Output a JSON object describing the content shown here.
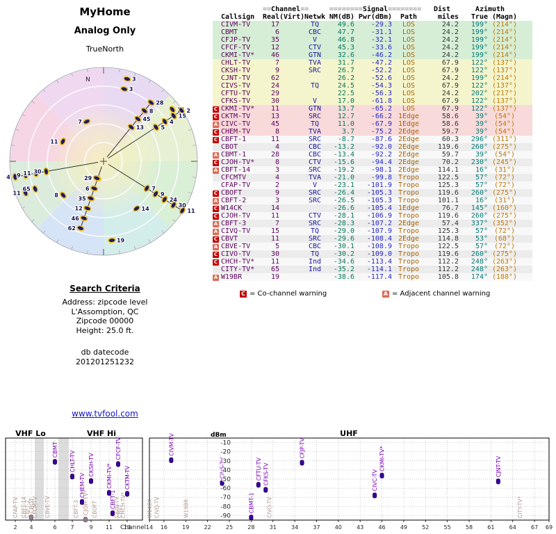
{
  "left": {
    "title1": "MyHome",
    "title2": "Analog Only",
    "north_label": "TrueNorth",
    "compass_n": "N",
    "search": {
      "heading": "Search Criteria",
      "lines": [
        "Address: zipcode level",
        "L'Assomption, QC",
        "Zipcode 00000",
        "Height: 25.0 ft."
      ],
      "datecode_label": "db datecode",
      "datecode": "201201251232"
    },
    "link": "www.tvfool.com"
  },
  "table": {
    "header": {
      "eq2": "==",
      "eq8": "========",
      "channel_group": "Channel",
      "signal_group": "Signal",
      "dist_group": "Dist",
      "azimuth_group": "Azimuth",
      "cols": [
        "Callsign",
        "Real",
        "(Virt)",
        "Netwk",
        "NM(dB)",
        "Pwr(dBm)",
        "Path",
        "miles",
        "True",
        "(Magn)"
      ]
    },
    "legend": {
      "c_symbol": "C",
      "c_text": "= Co-channel warning",
      "a_symbol": "A",
      "a_text": "= Adjacent channel warning"
    },
    "rows": [
      {
        "badge": "",
        "callsign": "CIVM-TV",
        "real": "17",
        "virt": "",
        "netwk": "TQ",
        "nm": "49.6",
        "pwr": "-29.3",
        "path": "LOS",
        "miles": "24.2",
        "true": "199°",
        "magn": "(214°)",
        "band": "green"
      },
      {
        "badge": "",
        "callsign": "CBMT",
        "real": "6",
        "virt": "",
        "netwk": "CBC",
        "nm": "47.7",
        "pwr": "-31.1",
        "path": "LOS",
        "miles": "24.2",
        "true": "199°",
        "magn": "(214°)",
        "band": "green"
      },
      {
        "badge": "",
        "callsign": "CFJP-TV",
        "real": "35",
        "virt": "",
        "netwk": "V",
        "nm": "46.8",
        "pwr": "-32.1",
        "path": "LOS",
        "miles": "24.2",
        "true": "199°",
        "magn": "(214°)",
        "band": "green"
      },
      {
        "badge": "",
        "callsign": "CFCF-TV",
        "real": "12",
        "virt": "",
        "netwk": "CTV",
        "nm": "45.3",
        "pwr": "-33.6",
        "path": "LOS",
        "miles": "24.2",
        "true": "199°",
        "magn": "(214°)",
        "band": "green"
      },
      {
        "badge": "",
        "callsign": "CKMI-TV*",
        "real": "46",
        "virt": "",
        "netwk": "GTN",
        "nm": "32.6",
        "pwr": "-46.2",
        "path": "LOS",
        "miles": "24.2",
        "true": "199°",
        "magn": "(214°)",
        "band": "green"
      },
      {
        "badge": "",
        "callsign": "CHLT-TV",
        "real": "7",
        "virt": "",
        "netwk": "TVA",
        "nm": "31.7",
        "pwr": "-47.2",
        "path": "LOS",
        "miles": "67.9",
        "true": "122°",
        "magn": "(137°)",
        "band": "yellow"
      },
      {
        "badge": "",
        "callsign": "CKSH-TV",
        "real": "9",
        "virt": "",
        "netwk": "SRC",
        "nm": "26.7",
        "pwr": "-52.2",
        "path": "LOS",
        "miles": "67.9",
        "true": "122°",
        "magn": "(137°)",
        "band": "yellow"
      },
      {
        "badge": "",
        "callsign": "CJNT-TV",
        "real": "62",
        "virt": "",
        "netwk": "",
        "nm": "26.2",
        "pwr": "-52.6",
        "path": "LOS",
        "miles": "24.2",
        "true": "199°",
        "magn": "(214°)",
        "band": "yellow"
      },
      {
        "badge": "",
        "callsign": "CIVS-TV",
        "real": "24",
        "virt": "",
        "netwk": "TQ",
        "nm": "24.5",
        "pwr": "-54.3",
        "path": "LOS",
        "miles": "67.9",
        "true": "122°",
        "magn": "(137°)",
        "band": "yellow"
      },
      {
        "badge": "",
        "callsign": "CFTU-TV",
        "real": "29",
        "virt": "",
        "netwk": "",
        "nm": "22.5",
        "pwr": "-56.3",
        "path": "LOS",
        "miles": "24.2",
        "true": "202°",
        "magn": "(217°)",
        "band": "yellow"
      },
      {
        "badge": "",
        "callsign": "CFKS-TV",
        "real": "30",
        "virt": "",
        "netwk": "V",
        "nm": "17.0",
        "pwr": "-61.8",
        "path": "LOS",
        "miles": "67.9",
        "true": "122°",
        "magn": "(137°)",
        "band": "yellow"
      },
      {
        "badge": "C",
        "callsign": "CKMI-TV*",
        "real": "11",
        "virt": "",
        "netwk": "GTN",
        "nm": "13.7",
        "pwr": "-65.2",
        "path": "LOS",
        "miles": "67.9",
        "true": "122°",
        "magn": "(137°)",
        "band": "pink"
      },
      {
        "badge": "C",
        "callsign": "CKTM-TV",
        "real": "13",
        "virt": "",
        "netwk": "SRC",
        "nm": "12.7",
        "pwr": "-66.2",
        "path": "1Edge",
        "miles": "58.6",
        "true": "39°",
        "magn": "(54°)",
        "band": "pink"
      },
      {
        "badge": "A",
        "callsign": "CIVC-TV",
        "real": "45",
        "virt": "",
        "netwk": "TQ",
        "nm": "11.0",
        "pwr": "-67.9",
        "path": "1Edge",
        "miles": "58.6",
        "true": "39°",
        "magn": "(54°)",
        "band": "pink"
      },
      {
        "badge": "C",
        "callsign": "CHEM-TV",
        "real": "8",
        "virt": "",
        "netwk": "TVA",
        "nm": "3.7",
        "pwr": "-75.2",
        "path": "2Edge",
        "miles": "59.7",
        "true": "39°",
        "magn": "(54°)",
        "band": "pink"
      },
      {
        "badge": "C",
        "callsign": "CBFT-1",
        "real": "11",
        "virt": "",
        "netwk": "SRC",
        "nm": "-8.7",
        "pwr": "-87.6",
        "path": "2Edge",
        "miles": "60.3",
        "true": "296°",
        "magn": "(311°)",
        "band": "gray"
      },
      {
        "badge": "",
        "callsign": "CBOT",
        "real": "4",
        "virt": "",
        "netwk": "CBC",
        "nm": "-13.2",
        "pwr": "-92.0",
        "path": "2Edge",
        "miles": "119.6",
        "true": "260°",
        "magn": "(275°)",
        "band": "gray"
      },
      {
        "badge": "A",
        "callsign": "CBMT-1",
        "real": "28",
        "virt": "",
        "netwk": "CBC",
        "nm": "-13.4",
        "pwr": "-92.2",
        "path": "2Edge",
        "miles": "59.7",
        "true": "39°",
        "magn": "(54°)",
        "band": "gray"
      },
      {
        "badge": "C",
        "callsign": "CJOH-TV*",
        "real": "8",
        "virt": "",
        "netwk": "CTV",
        "nm": "-15.6",
        "pwr": "-94.4",
        "path": "2Edge",
        "miles": "70.2",
        "true": "230°",
        "magn": "(245°)",
        "band": "gray"
      },
      {
        "badge": "A",
        "callsign": "CBFT-14",
        "real": "3",
        "virt": "",
        "netwk": "SRC",
        "nm": "-19.2",
        "pwr": "-98.1",
        "path": "2Edge",
        "miles": "114.1",
        "true": "16°",
        "magn": "(31°)",
        "band": "gray"
      },
      {
        "badge": "",
        "callsign": "CFCMTV",
        "real": "4",
        "virt": "",
        "netwk": "TVA",
        "nm": "-21.0",
        "pwr": "-99.8",
        "path": "Tropo",
        "miles": "122.5",
        "true": "57°",
        "magn": "(72°)",
        "band": "gray"
      },
      {
        "badge": "",
        "callsign": "CFAP-TV",
        "real": "2",
        "virt": "",
        "netwk": "V",
        "nm": "-23.1",
        "pwr": "-101.9",
        "path": "Tropo",
        "miles": "125.3",
        "true": "57°",
        "magn": "(72°)",
        "band": "gray"
      },
      {
        "badge": "C",
        "callsign": "CBOFT",
        "real": "9",
        "virt": "",
        "netwk": "SRC",
        "nm": "-26.4",
        "pwr": "-105.3",
        "path": "Tropo",
        "miles": "119.6",
        "true": "260°",
        "magn": "(275°)",
        "band": "gray"
      },
      {
        "badge": "A",
        "callsign": "CBFT-2",
        "real": "3",
        "virt": "",
        "netwk": "SRC",
        "nm": "-26.5",
        "pwr": "-105.3",
        "path": "Tropo",
        "miles": "101.1",
        "true": "16°",
        "magn": "(31°)",
        "band": "gray"
      },
      {
        "badge": "C",
        "callsign": "W14CK",
        "real": "14",
        "virt": "",
        "netwk": "",
        "nm": "-26.6",
        "pwr": "-105.4",
        "path": "1Edge",
        "miles": "76.7",
        "true": "145°",
        "magn": "(160°)",
        "band": "gray"
      },
      {
        "badge": "C",
        "callsign": "CJOH-TV",
        "real": "11",
        "virt": "",
        "netwk": "CTV",
        "nm": "-28.1",
        "pwr": "-106.9",
        "path": "Tropo",
        "miles": "119.6",
        "true": "260°",
        "magn": "(275°)",
        "band": "gray"
      },
      {
        "badge": "A",
        "callsign": "CBFT-3",
        "real": "7",
        "virt": "",
        "netwk": "SRC",
        "nm": "-28.3",
        "pwr": "-107.2",
        "path": "2Edge",
        "miles": "57.4",
        "true": "337°",
        "magn": "(352°)",
        "band": "gray"
      },
      {
        "badge": "A",
        "callsign": "CIVQ-TV",
        "real": "15",
        "virt": "",
        "netwk": "TQ",
        "nm": "-29.0",
        "pwr": "-107.9",
        "path": "Tropo",
        "miles": "125.3",
        "true": "57°",
        "magn": "(72°)",
        "band": "gray"
      },
      {
        "badge": "C",
        "callsign": "CBVT",
        "real": "11",
        "virt": "",
        "netwk": "SRC",
        "nm": "-29.6",
        "pwr": "-108.4",
        "path": "2Edge",
        "miles": "114.8",
        "true": "53°",
        "magn": "(68°)",
        "band": "gray"
      },
      {
        "badge": "A",
        "callsign": "CBVE-TV",
        "real": "5",
        "virt": "",
        "netwk": "CBC",
        "nm": "-30.1",
        "pwr": "-108.9",
        "path": "Tropo",
        "miles": "122.5",
        "true": "57°",
        "magn": "(72°)",
        "band": "gray"
      },
      {
        "badge": "C",
        "callsign": "CIVO-TV",
        "real": "30",
        "virt": "",
        "netwk": "TQ",
        "nm": "-30.2",
        "pwr": "-109.0",
        "path": "Tropo",
        "miles": "119.6",
        "true": "260°",
        "magn": "(275°)",
        "band": "gray"
      },
      {
        "badge": "C",
        "callsign": "CHCH-TV*",
        "real": "11",
        "virt": "",
        "netwk": "Ind",
        "nm": "-34.6",
        "pwr": "-113.4",
        "path": "Tropo",
        "miles": "112.2",
        "true": "248°",
        "magn": "(263°)",
        "band": "gray"
      },
      {
        "badge": "",
        "callsign": "CITY-TV*",
        "real": "65",
        "virt": "",
        "netwk": "Ind",
        "nm": "-35.2",
        "pwr": "-114.1",
        "path": "Tropo",
        "miles": "112.2",
        "true": "248°",
        "magn": "(263°)",
        "band": "gray"
      },
      {
        "badge": "A",
        "callsign": "W19BR",
        "real": "19",
        "virt": "",
        "netwk": "",
        "nm": "-38.6",
        "pwr": "-117.4",
        "path": "Tropo",
        "miles": "105.8",
        "true": "174°",
        "magn": "(188°)",
        "band": "gray"
      }
    ]
  },
  "radar": {
    "rings_miles": [
      25,
      50,
      75,
      100,
      125
    ],
    "sector_colors": [
      "#e8daf2",
      "#e7f0d3",
      "#d9efd6",
      "#d3edea",
      "#d5e4f6",
      "#dcecdc",
      "#f6d5e5",
      "#f0d9f0"
    ],
    "center_glow": "#f6efc0"
  },
  "chart_data": [
    {
      "type": "scatter",
      "panel": "VHF",
      "band_labels": [
        "VHF Lo",
        "VHF Hi"
      ],
      "ylabel": "dBm",
      "xlabel": "Channel",
      "ylim": [
        -95,
        -5
      ],
      "yticks": [
        -10,
        -20,
        -30,
        -40,
        -50,
        -60,
        -70,
        -80,
        -90
      ],
      "xticks": [
        2,
        4,
        6,
        7,
        9,
        11,
        13
      ],
      "xrange": [
        2,
        13
      ],
      "gray_gaps": [
        [
          4,
          5
        ],
        [
          6,
          7
        ]
      ],
      "points": [
        {
          "label": "CFAP-TV",
          "channel": 2,
          "dbm": -101.9,
          "dim": true
        },
        {
          "label": "CBFT-14",
          "channel": 3,
          "dbm": -98.1,
          "dim": true
        },
        {
          "label": "CBFT-2",
          "channel": 3,
          "dbm": -105.3,
          "dim": true
        },
        {
          "label": "CBOT",
          "channel": 4,
          "dbm": -92.0,
          "dim": true
        },
        {
          "label": "CFCMTV",
          "channel": 4,
          "dbm": -99.8,
          "dim": true
        },
        {
          "label": "CBVE-TV",
          "channel": 5,
          "dbm": -108.9,
          "dim": true
        },
        {
          "label": "CBMT",
          "channel": 6,
          "dbm": -31.1
        },
        {
          "label": "CHLT-TV",
          "channel": 7,
          "dbm": -47.2
        },
        {
          "label": "CBFT-3",
          "channel": 7,
          "dbm": -107.2,
          "dim": true
        },
        {
          "label": "CHEM-TV",
          "channel": 8,
          "dbm": -75.2
        },
        {
          "label": "CJOH-TV*",
          "channel": 8,
          "dbm": -94.4,
          "dim": true
        },
        {
          "label": "CKSH-TV",
          "channel": 9,
          "dbm": -52.2
        },
        {
          "label": "CBOFT",
          "channel": 9,
          "dbm": -105.3,
          "dim": true
        },
        {
          "label": "CKMI-TV*",
          "channel": 11,
          "dbm": -65.2
        },
        {
          "label": "CBFT-1",
          "channel": 11,
          "dbm": -87.6
        },
        {
          "label": "CJOH-TV",
          "channel": 11,
          "dbm": -106.9,
          "dim": true
        },
        {
          "label": "CBVT",
          "channel": 11,
          "dbm": -108.4,
          "dim": true
        },
        {
          "label": "CHCH-TV*",
          "channel": 11,
          "dbm": -113.4,
          "dim": true
        },
        {
          "label": "CFCF-TV",
          "channel": 12,
          "dbm": -33.6
        },
        {
          "label": "CKTM-TV",
          "channel": 13,
          "dbm": -66.2
        }
      ]
    },
    {
      "type": "scatter",
      "pan_label": "UHF",
      "panel": "UHF",
      "band_labels": [
        "UHF"
      ],
      "ylim": [
        -95,
        -5
      ],
      "yticks": [
        -10,
        -20,
        -30,
        -40,
        -50,
        -60,
        -70,
        -80,
        -90
      ],
      "xticks": [
        14,
        16,
        19,
        22,
        25,
        28,
        31,
        34,
        37,
        40,
        43,
        46,
        49,
        52,
        55,
        58,
        61,
        64,
        67,
        69
      ],
      "xrange": [
        14,
        69
      ],
      "points": [
        {
          "label": "W14CK",
          "channel": 14,
          "dbm": -105.4,
          "dim": true
        },
        {
          "label": "CIVQ-TV",
          "channel": 15,
          "dbm": -107.9,
          "dim": true
        },
        {
          "label": "CIVM-TV",
          "channel": 17,
          "dbm": -29.3
        },
        {
          "label": "W19BR",
          "channel": 19,
          "dbm": -117.4,
          "dim": true
        },
        {
          "label": "CIVS-TV",
          "channel": 24,
          "dbm": -54.3
        },
        {
          "label": "CBMT-1",
          "channel": 28,
          "dbm": -92.2
        },
        {
          "label": "CFTU-TV",
          "channel": 29,
          "dbm": -56.3
        },
        {
          "label": "CFKS-TV",
          "channel": 30,
          "dbm": -61.8
        },
        {
          "label": "CIVO-TV",
          "channel": 30,
          "dbm": -109.0,
          "dim": true
        },
        {
          "label": "CFJP-TV",
          "channel": 35,
          "dbm": -32.1
        },
        {
          "label": "CIVC-TV",
          "channel": 45,
          "dbm": -67.9
        },
        {
          "label": "CKMI-TV*",
          "channel": 46,
          "dbm": -46.2
        },
        {
          "label": "CJNT-TV",
          "channel": 62,
          "dbm": -52.6
        },
        {
          "label": "CITY-TV*",
          "channel": 65,
          "dbm": -114.1,
          "dim": true
        }
      ]
    }
  ]
}
